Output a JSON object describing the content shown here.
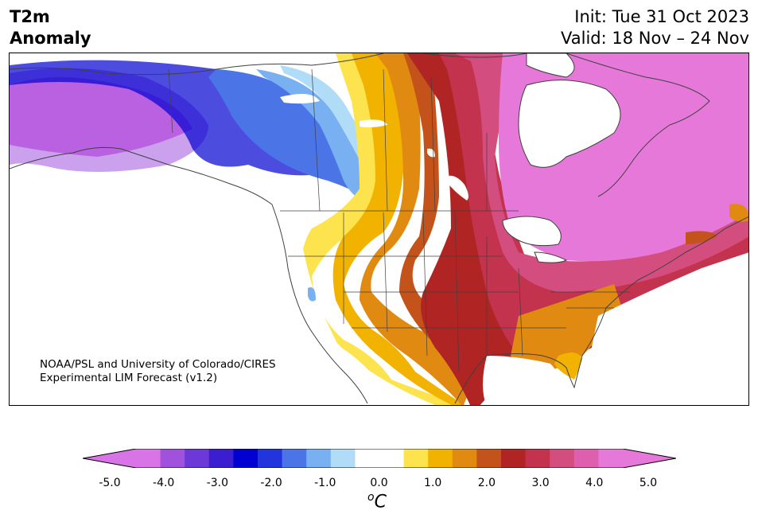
{
  "title": {
    "line1": "T2m",
    "line2": "Anomaly"
  },
  "init": {
    "line1": "Init: Tue 31 Oct 2023",
    "line2": "Valid: 18 Nov – 24 Nov"
  },
  "credit": {
    "line1": "NOAA/PSL and University of Colorado/CIRES",
    "line2": "Experimental LIM Forecast (v1.2)"
  },
  "colorbar": {
    "ticks": [
      "-5.0",
      "-4.0",
      "-3.0",
      "-2.0",
      "-1.0",
      "0.0",
      "1.0",
      "2.0",
      "3.0",
      "4.0",
      "5.0"
    ],
    "unit_base": "C",
    "unit_sup": "o",
    "colors": [
      "#d874e6",
      "#a052dc",
      "#6c38d8",
      "#3a1ed0",
      "#0000d2",
      "#2234dc",
      "#4b74e6",
      "#78b0f2",
      "#b0dcf8",
      "#ffffff",
      "#ffffff",
      "#fde34d",
      "#f1b300",
      "#e08a12",
      "#c3531a",
      "#b02424",
      "#c3334d",
      "#d34d7f",
      "#de5fae",
      "#e678d9"
    ]
  },
  "map": {
    "region": "North America",
    "colors": {
      "ocean": "#ffffff",
      "neutral": "#ffffff",
      "cold_strong": "#d874e6",
      "cold": "#0000d2",
      "cool": "#78b0f2",
      "warm_light": "#fde34d",
      "warm": "#f1b300",
      "warm_mid": "#e08a12",
      "hot": "#b02424",
      "very_hot": "#c3334d",
      "extreme": "#e678d9"
    }
  }
}
